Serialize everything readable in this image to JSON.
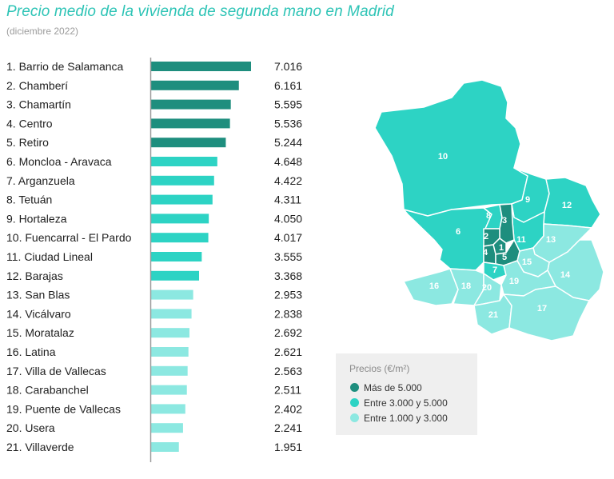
{
  "header": {
    "title": "Precio medio de la vivienda de segunda mano en Madrid",
    "subtitle": "(diciembre 2022)"
  },
  "colors": {
    "high": "#1e8e7e",
    "mid": "#2dd3c4",
    "low": "#8ce8e1",
    "title": "#2ec4b6",
    "axis": "#9a9a9a"
  },
  "chart_data": {
    "type": "bar",
    "orientation": "horizontal",
    "categories": [
      "1. Barrio de Salamanca",
      "2. Chamberí",
      "3. Chamartín",
      "4. Centro",
      "5. Retiro",
      "6. Moncloa - Aravaca",
      "7. Arganzuela",
      "8. Tetuán",
      "9. Hortaleza",
      "10. Fuencarral - El Pardo",
      "11. Ciudad Lineal",
      "12. Barajas",
      "13. San Blas",
      "14. Vicálvaro",
      "15. Moratalaz",
      "16. Latina",
      "17. Villa de Vallecas",
      "18. Carabanchel",
      "19. Puente de Vallecas",
      "20. Usera",
      "21. Villaverde"
    ],
    "values": [
      7016,
      6161,
      5595,
      5536,
      5244,
      4648,
      4422,
      4311,
      4050,
      4017,
      3555,
      3368,
      2953,
      2838,
      2692,
      2621,
      2563,
      2511,
      2402,
      2241,
      1951
    ],
    "value_labels": [
      "7.016",
      "6.161",
      "5.595",
      "5.536",
      "5.244",
      "4.648",
      "4.422",
      "4.311",
      "4.050",
      "4.017",
      "3.555",
      "3.368",
      "2.953",
      "2.838",
      "2.692",
      "2.621",
      "2.563",
      "2.511",
      "2.402",
      "2.241",
      "1.951"
    ],
    "xlim": [
      0,
      7016
    ]
  },
  "legend": {
    "title": "Precios (€/m²)",
    "items": [
      {
        "label": "Más de 5.000",
        "color": "#1e8e7e"
      },
      {
        "label": "Entre 3.000 y 5.000",
        "color": "#2dd3c4"
      },
      {
        "label": "Entre 1.000 y 3.000",
        "color": "#8ce8e1"
      }
    ]
  },
  "map": {
    "district_numbers": [
      "1",
      "2",
      "3",
      "4",
      "5",
      "6",
      "7",
      "8",
      "9",
      "10",
      "11",
      "12",
      "13",
      "14",
      "15",
      "16",
      "17",
      "18",
      "19",
      "20",
      "21"
    ]
  }
}
